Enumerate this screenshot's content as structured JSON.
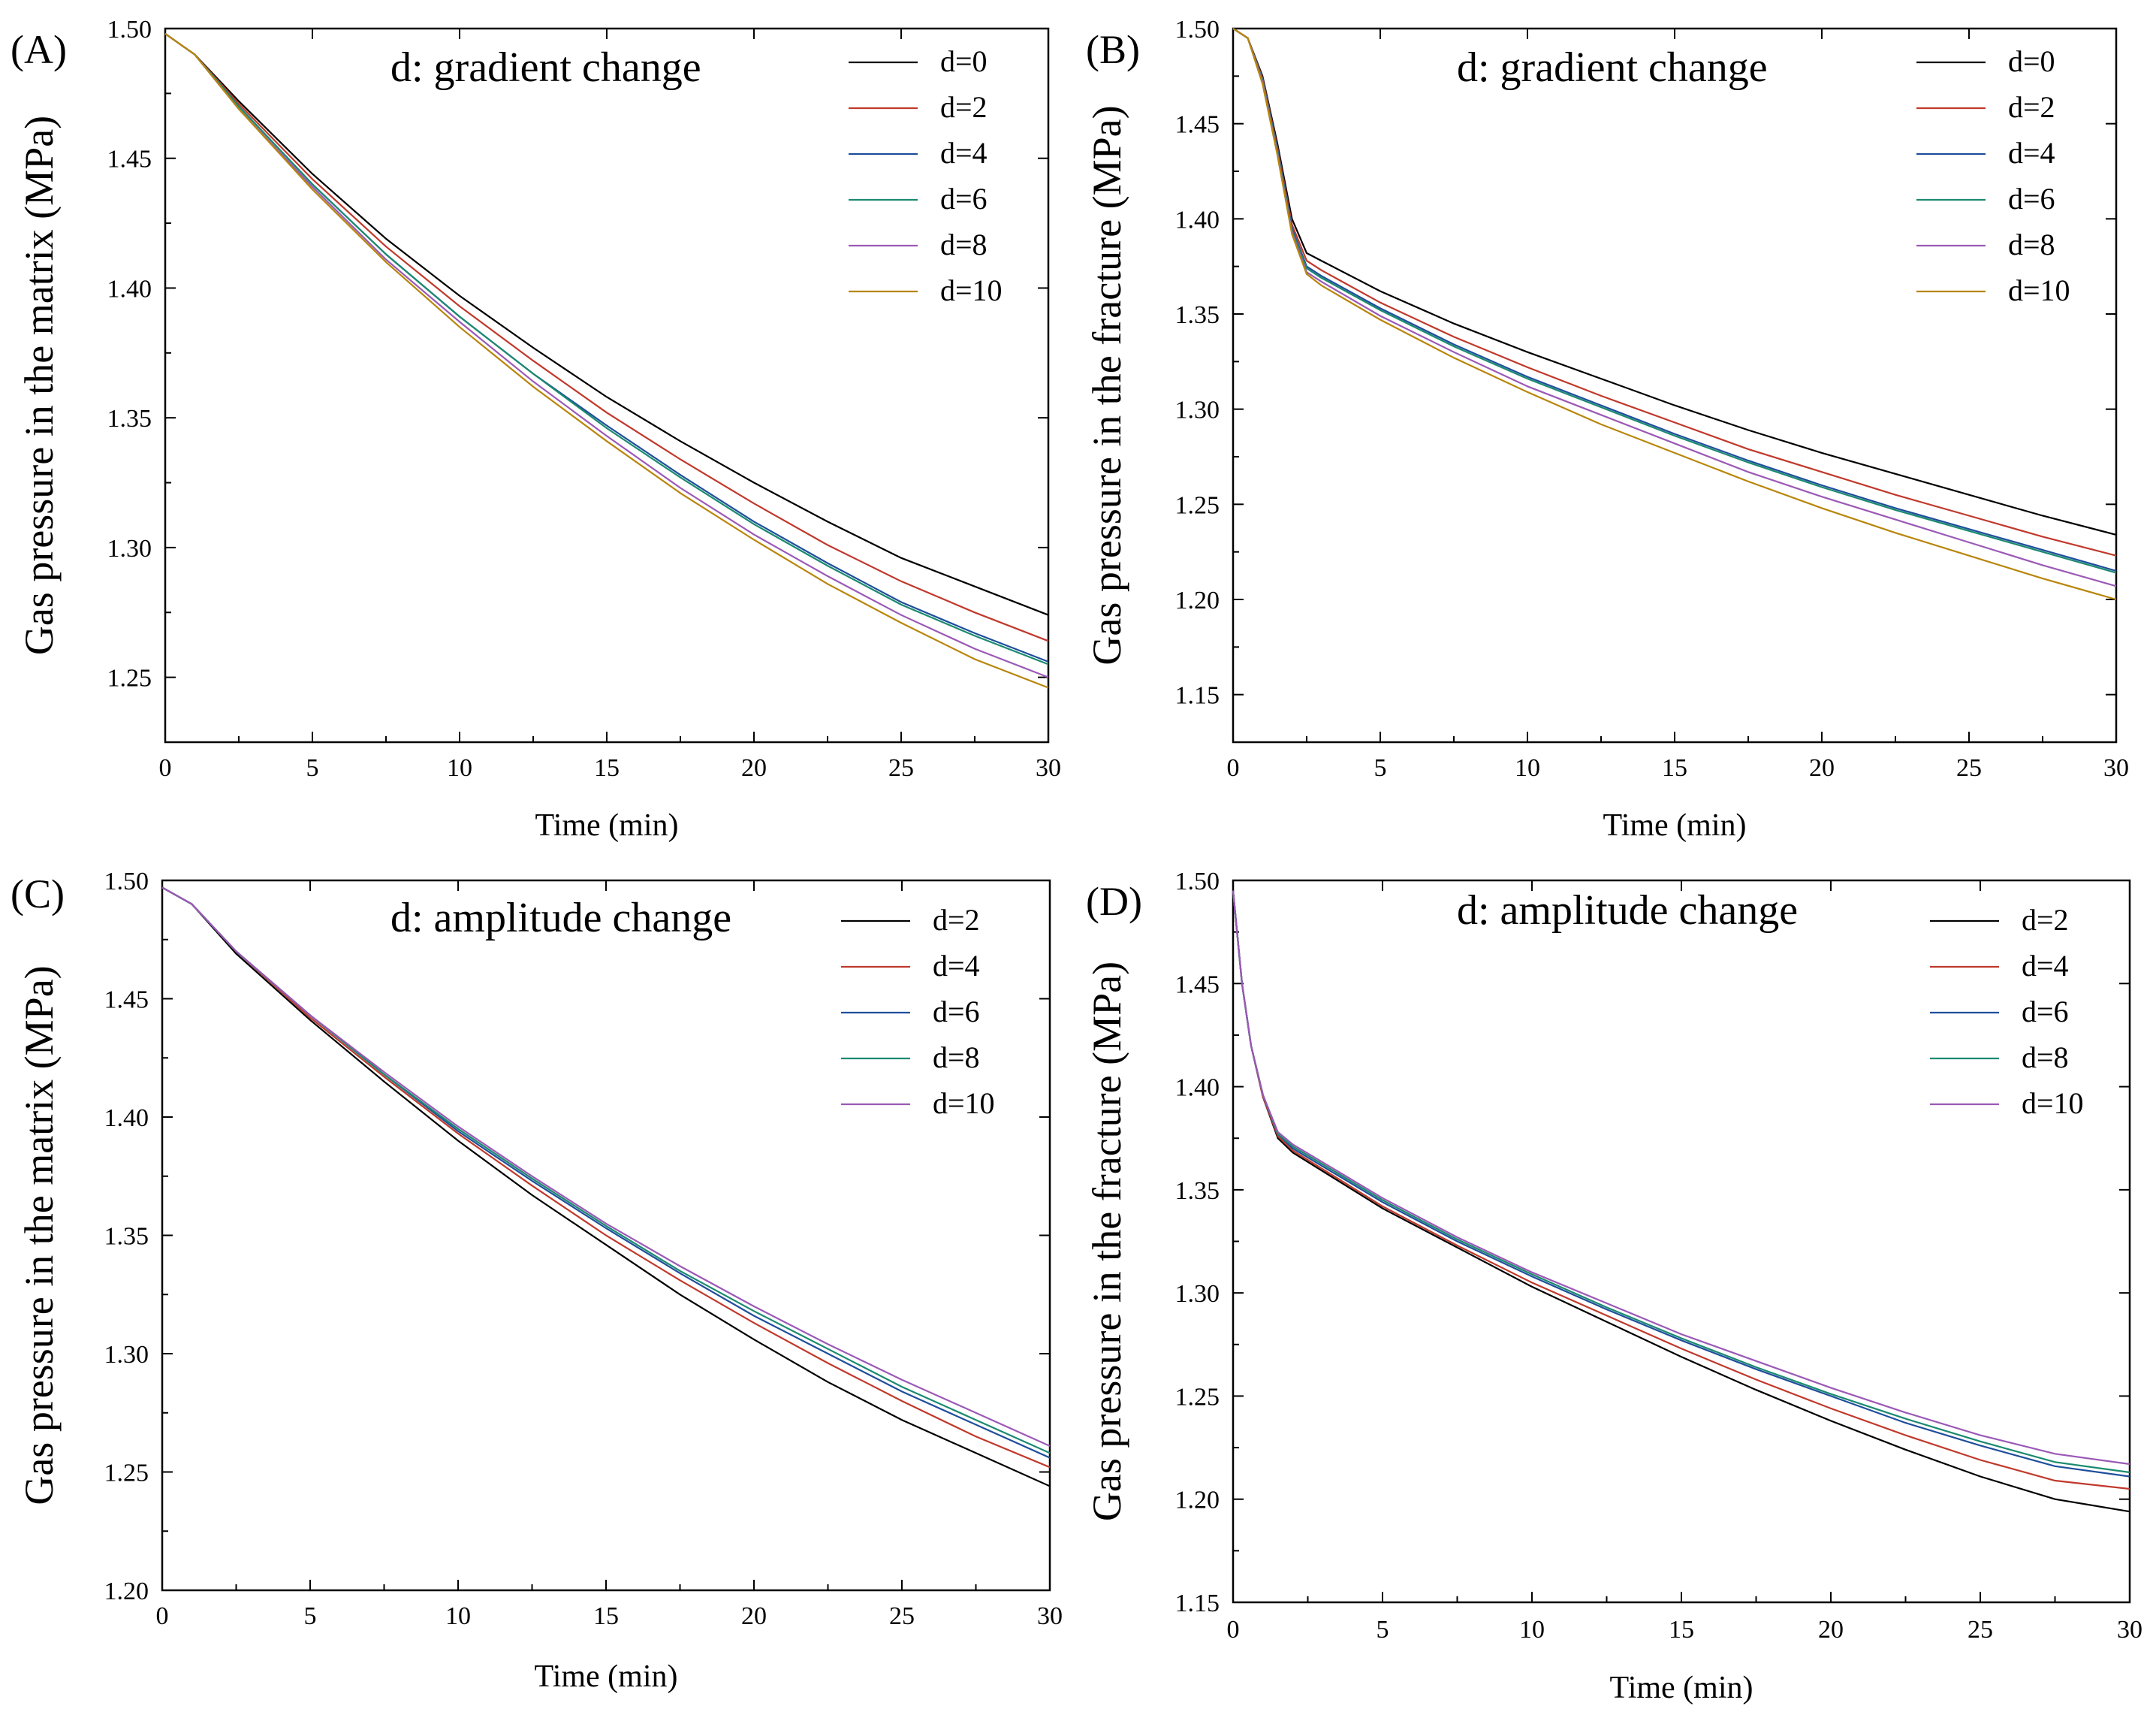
{
  "colors": {
    "d0": "#000000",
    "d2_red": "#c0392b",
    "d4_blue": "#1f4e9c",
    "d6_green": "#1a8a6f",
    "d8_violet": "#9b59b6",
    "d10_gold": "#b8860b"
  },
  "chart_data": [
    {
      "type": "line",
      "panel_label": "(A)",
      "annotation": "d: gradient change",
      "xlabel": "Time (min)",
      "ylabel": "Gas pressure in the matrix (MPa)",
      "xlim": [
        0,
        30
      ],
      "ylim": [
        1.225,
        1.5
      ],
      "xticks": [
        0,
        5,
        10,
        15,
        20,
        25,
        30
      ],
      "yticks": [
        1.25,
        1.3,
        1.35,
        1.4,
        1.45,
        1.5
      ],
      "ytick_labels": [
        "1.25",
        "1.30",
        "1.35",
        "1.40",
        "1.45",
        "1.50"
      ],
      "grid": false,
      "legend_position": "top-right",
      "x": [
        0,
        1,
        2.5,
        5,
        7.5,
        10,
        12.5,
        15,
        17.5,
        20,
        22.5,
        25,
        27.5,
        30
      ],
      "series": [
        {
          "name": "d=0",
          "color": "#000000",
          "values": [
            1.498,
            1.49,
            1.472,
            1.444,
            1.419,
            1.397,
            1.377,
            1.358,
            1.341,
            1.325,
            1.31,
            1.296,
            1.285,
            1.274
          ]
        },
        {
          "name": "d=2",
          "color": "#c0392b",
          "values": [
            1.498,
            1.49,
            1.471,
            1.442,
            1.416,
            1.393,
            1.372,
            1.352,
            1.334,
            1.317,
            1.301,
            1.287,
            1.275,
            1.264
          ]
        },
        {
          "name": "d=4",
          "color": "#1f4e9c",
          "values": [
            1.498,
            1.49,
            1.47,
            1.44,
            1.413,
            1.389,
            1.367,
            1.347,
            1.328,
            1.31,
            1.294,
            1.279,
            1.267,
            1.256
          ]
        },
        {
          "name": "d=6",
          "color": "#1a8a6f",
          "values": [
            1.498,
            1.49,
            1.47,
            1.44,
            1.413,
            1.389,
            1.367,
            1.346,
            1.327,
            1.309,
            1.293,
            1.278,
            1.266,
            1.255
          ]
        },
        {
          "name": "d=8",
          "color": "#9b59b6",
          "values": [
            1.498,
            1.49,
            1.469,
            1.439,
            1.411,
            1.387,
            1.364,
            1.343,
            1.323,
            1.305,
            1.289,
            1.274,
            1.261,
            1.25
          ]
        },
        {
          "name": "d=10",
          "color": "#b8860b",
          "values": [
            1.498,
            1.49,
            1.469,
            1.438,
            1.41,
            1.385,
            1.362,
            1.341,
            1.321,
            1.303,
            1.286,
            1.271,
            1.257,
            1.246
          ]
        }
      ]
    },
    {
      "type": "line",
      "panel_label": "(B)",
      "annotation": "d: gradient change",
      "xlabel": "Time (min)",
      "ylabel": "Gas pressure in the fracture (MPa)",
      "xlim": [
        0,
        30
      ],
      "ylim": [
        1.125,
        1.5
      ],
      "xticks": [
        0,
        5,
        10,
        15,
        20,
        25,
        30
      ],
      "yticks": [
        1.15,
        1.2,
        1.25,
        1.3,
        1.35,
        1.4,
        1.45,
        1.5
      ],
      "ytick_labels": [
        "1.15",
        "1.20",
        "1.25",
        "1.30",
        "1.35",
        "1.40",
        "1.45",
        "1.50"
      ],
      "grid": false,
      "legend_position": "top-right",
      "x": [
        0,
        0.5,
        1,
        1.5,
        2,
        2.5,
        3,
        5,
        7.5,
        10,
        12.5,
        15,
        17.5,
        20,
        22.5,
        25,
        27.5,
        30
      ],
      "series": [
        {
          "name": "d=0",
          "color": "#000000",
          "values": [
            1.5,
            1.495,
            1.475,
            1.44,
            1.4,
            1.382,
            1.378,
            1.362,
            1.345,
            1.33,
            1.316,
            1.302,
            1.289,
            1.277,
            1.266,
            1.255,
            1.244,
            1.234
          ]
        },
        {
          "name": "d=2",
          "color": "#c0392b",
          "values": [
            1.5,
            1.495,
            1.474,
            1.438,
            1.397,
            1.378,
            1.373,
            1.356,
            1.338,
            1.322,
            1.307,
            1.293,
            1.279,
            1.267,
            1.255,
            1.244,
            1.233,
            1.223
          ]
        },
        {
          "name": "d=4",
          "color": "#1f4e9c",
          "values": [
            1.5,
            1.495,
            1.473,
            1.437,
            1.395,
            1.375,
            1.37,
            1.353,
            1.334,
            1.317,
            1.302,
            1.287,
            1.273,
            1.26,
            1.248,
            1.237,
            1.226,
            1.215
          ]
        },
        {
          "name": "d=6",
          "color": "#1a8a6f",
          "values": [
            1.5,
            1.495,
            1.473,
            1.436,
            1.394,
            1.374,
            1.369,
            1.352,
            1.333,
            1.316,
            1.301,
            1.286,
            1.272,
            1.259,
            1.247,
            1.236,
            1.225,
            1.214
          ]
        },
        {
          "name": "d=8",
          "color": "#9b59b6",
          "values": [
            1.5,
            1.495,
            1.472,
            1.435,
            1.393,
            1.372,
            1.367,
            1.349,
            1.33,
            1.312,
            1.297,
            1.282,
            1.267,
            1.254,
            1.242,
            1.23,
            1.218,
            1.207
          ]
        },
        {
          "name": "d=10",
          "color": "#b8860b",
          "values": [
            1.5,
            1.495,
            1.471,
            1.434,
            1.392,
            1.371,
            1.365,
            1.347,
            1.327,
            1.309,
            1.292,
            1.277,
            1.262,
            1.248,
            1.235,
            1.223,
            1.211,
            1.2
          ]
        }
      ]
    },
    {
      "type": "line",
      "panel_label": "(C)",
      "annotation": "d: amplitude change",
      "xlabel": "Time (min)",
      "ylabel": "Gas pressure in the matrix (MPa)",
      "xlim": [
        0,
        30
      ],
      "ylim": [
        1.2,
        1.5
      ],
      "xticks": [
        0,
        5,
        10,
        15,
        20,
        25,
        30
      ],
      "yticks": [
        1.2,
        1.25,
        1.3,
        1.35,
        1.4,
        1.45,
        1.5
      ],
      "ytick_labels": [
        "1.20",
        "1.25",
        "1.30",
        "1.35",
        "1.40",
        "1.45",
        "1.50"
      ],
      "grid": false,
      "legend_position": "top-right",
      "x": [
        0,
        1,
        2.5,
        5,
        7.5,
        10,
        12.5,
        15,
        17.5,
        20,
        22.5,
        25,
        27.5,
        30
      ],
      "series": [
        {
          "name": "d=2",
          "color": "#000000",
          "values": [
            1.497,
            1.49,
            1.469,
            1.441,
            1.415,
            1.39,
            1.367,
            1.346,
            1.325,
            1.306,
            1.288,
            1.272,
            1.258,
            1.244
          ]
        },
        {
          "name": "d=4",
          "color": "#c0392b",
          "values": [
            1.497,
            1.49,
            1.47,
            1.442,
            1.417,
            1.393,
            1.371,
            1.35,
            1.331,
            1.313,
            1.296,
            1.28,
            1.265,
            1.252
          ]
        },
        {
          "name": "d=6",
          "color": "#1f4e9c",
          "values": [
            1.497,
            1.49,
            1.47,
            1.443,
            1.418,
            1.394,
            1.373,
            1.353,
            1.334,
            1.316,
            1.3,
            1.284,
            1.27,
            1.256
          ]
        },
        {
          "name": "d=8",
          "color": "#1a8a6f",
          "values": [
            1.497,
            1.49,
            1.47,
            1.443,
            1.418,
            1.395,
            1.374,
            1.354,
            1.335,
            1.318,
            1.302,
            1.286,
            1.272,
            1.258
          ]
        },
        {
          "name": "d=10",
          "color": "#9b59b6",
          "values": [
            1.497,
            1.49,
            1.47,
            1.443,
            1.419,
            1.396,
            1.375,
            1.355,
            1.337,
            1.32,
            1.304,
            1.289,
            1.275,
            1.261
          ]
        }
      ]
    },
    {
      "type": "line",
      "panel_label": "(D)",
      "annotation": "d: amplitude change",
      "xlabel": "Time (min)",
      "ylabel": "Gas pressure in the fracture (MPa)",
      "xlim": [
        0,
        30
      ],
      "ylim": [
        1.15,
        1.5
      ],
      "xticks": [
        0,
        5,
        10,
        15,
        20,
        25,
        30
      ],
      "yticks": [
        1.15,
        1.2,
        1.25,
        1.3,
        1.35,
        1.4,
        1.45,
        1.5
      ],
      "ytick_labels": [
        "1.15",
        "1.20",
        "1.25",
        "1.30",
        "1.35",
        "1.40",
        "1.45",
        "1.50"
      ],
      "grid": false,
      "legend_position": "top-right",
      "x": [
        0,
        0.3,
        0.6,
        1,
        1.5,
        2,
        5,
        7.5,
        10,
        12.5,
        15,
        17.5,
        20,
        22.5,
        25,
        27.5,
        30
      ],
      "series": [
        {
          "name": "d=2",
          "color": "#000000",
          "values": [
            1.495,
            1.45,
            1.42,
            1.395,
            1.375,
            1.368,
            1.341,
            1.322,
            1.303,
            1.286,
            1.269,
            1.253,
            1.238,
            1.224,
            1.211,
            1.2,
            1.194
          ]
        },
        {
          "name": "d=4",
          "color": "#c0392b",
          "values": [
            1.495,
            1.45,
            1.42,
            1.395,
            1.376,
            1.369,
            1.342,
            1.323,
            1.305,
            1.289,
            1.273,
            1.258,
            1.244,
            1.231,
            1.219,
            1.209,
            1.205
          ]
        },
        {
          "name": "d=6",
          "color": "#1f4e9c",
          "values": [
            1.495,
            1.45,
            1.42,
            1.396,
            1.377,
            1.37,
            1.344,
            1.325,
            1.308,
            1.292,
            1.277,
            1.263,
            1.25,
            1.237,
            1.226,
            1.216,
            1.211
          ]
        },
        {
          "name": "d=8",
          "color": "#1a8a6f",
          "values": [
            1.495,
            1.45,
            1.42,
            1.396,
            1.377,
            1.371,
            1.345,
            1.326,
            1.309,
            1.293,
            1.278,
            1.264,
            1.251,
            1.239,
            1.228,
            1.218,
            1.213
          ]
        },
        {
          "name": "d=10",
          "color": "#9b59b6",
          "values": [
            1.495,
            1.45,
            1.42,
            1.396,
            1.378,
            1.372,
            1.346,
            1.327,
            1.31,
            1.295,
            1.28,
            1.267,
            1.254,
            1.242,
            1.231,
            1.222,
            1.217
          ]
        }
      ]
    }
  ]
}
